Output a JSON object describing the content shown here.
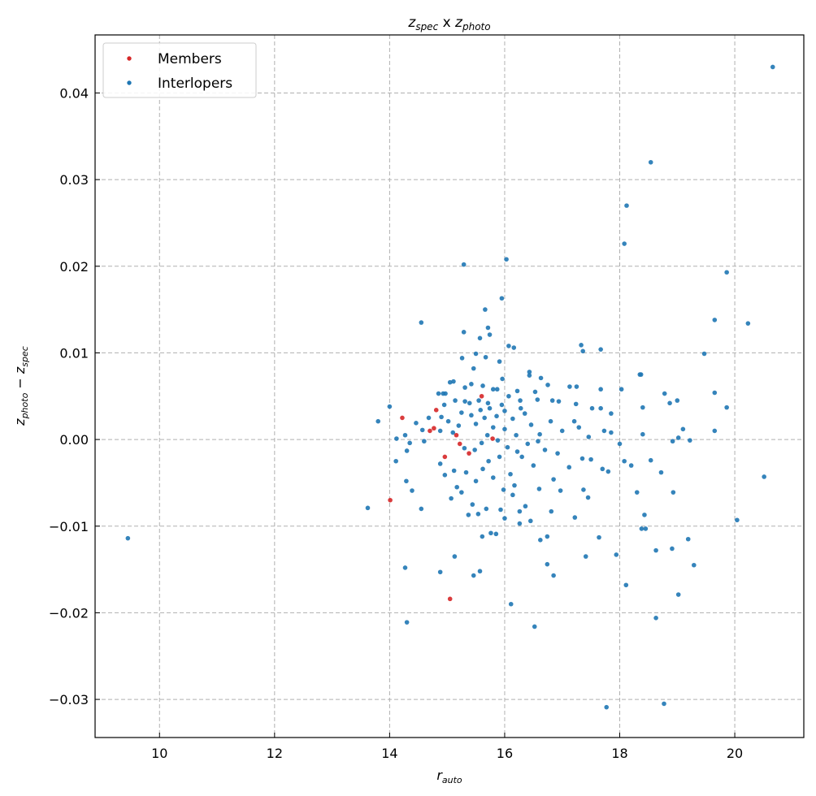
{
  "chart_data": {
    "type": "scatter",
    "title": "z_spec x z_photo",
    "title_parts": {
      "a": "z",
      "a_sub": "spec",
      "mid": " x ",
      "b": "z",
      "b_sub": "photo"
    },
    "xlabel": {
      "main": "r",
      "sub": "auto"
    },
    "ylabel": {
      "a": "z",
      "a_sub": "photo",
      "mid": " − ",
      "b": "z",
      "b_sub": "spec"
    },
    "xlim": [
      8.88,
      21.2
    ],
    "ylim": [
      -0.0344,
      0.0467
    ],
    "xticks": [
      10,
      12,
      14,
      16,
      18,
      20
    ],
    "xtick_labels": [
      "10",
      "12",
      "14",
      "16",
      "18",
      "20"
    ],
    "yticks": [
      -0.03,
      -0.02,
      -0.01,
      0,
      0.01,
      0.02,
      0.03,
      0.04
    ],
    "ytick_labels": [
      "−0.03",
      "−0.02",
      "−0.01",
      "0.00",
      "0.01",
      "0.02",
      "0.03",
      "0.04"
    ],
    "grid": true,
    "legend_position": "top-left",
    "series": [
      {
        "name": "Members",
        "color": "#d62728",
        "points": [
          [
            15.6,
            0.005
          ],
          [
            14.81,
            0.0034
          ],
          [
            14.22,
            0.0025
          ],
          [
            14.7,
            0.001
          ],
          [
            14.77,
            0.0013
          ],
          [
            15.16,
            0.0005
          ],
          [
            15.22,
            -0.0005
          ],
          [
            15.79,
            0.0001
          ],
          [
            14.96,
            -0.002
          ],
          [
            15.38,
            -0.0016
          ],
          [
            14.01,
            -0.007
          ],
          [
            15.05,
            -0.0184
          ]
        ]
      },
      {
        "name": "Interlopers",
        "color": "#1f77b4",
        "points": [
          [
            20.66,
            0.043
          ],
          [
            18.54,
            0.032
          ],
          [
            18.12,
            0.027
          ],
          [
            18.08,
            0.0226
          ],
          [
            16.03,
            0.0208
          ],
          [
            15.29,
            0.0202
          ],
          [
            19.86,
            0.0193
          ],
          [
            15.95,
            0.0163
          ],
          [
            14.55,
            0.0135
          ],
          [
            19.65,
            0.0138
          ],
          [
            20.23,
            0.0134
          ],
          [
            19.47,
            0.0099
          ],
          [
            17.33,
            0.0109
          ],
          [
            17.36,
            0.0102
          ],
          [
            17.67,
            0.0104
          ],
          [
            13.62,
            -0.0079
          ],
          [
            9.45,
            -0.0114
          ],
          [
            20.51,
            -0.0043
          ],
          [
            20.04,
            -0.0093
          ],
          [
            14.27,
            -0.0148
          ],
          [
            14.3,
            -0.0211
          ],
          [
            16.11,
            -0.019
          ],
          [
            16.52,
            -0.0216
          ],
          [
            17.77,
            -0.0309
          ],
          [
            18.77,
            -0.0305
          ],
          [
            18.63,
            -0.0206
          ],
          [
            19.02,
            -0.0179
          ],
          [
            19.29,
            -0.0145
          ],
          [
            19.19,
            -0.0115
          ],
          [
            18.91,
            -0.0126
          ],
          [
            18.63,
            -0.0128
          ],
          [
            18.11,
            -0.0168
          ],
          [
            17.94,
            -0.0133
          ],
          [
            17.64,
            -0.0113
          ],
          [
            16.85,
            -0.0157
          ],
          [
            16.74,
            -0.0144
          ],
          [
            17.41,
            -0.0135
          ],
          [
            15.13,
            -0.0135
          ],
          [
            14.88,
            -0.0153
          ],
          [
            15.46,
            -0.0157
          ],
          [
            15.57,
            -0.0152
          ],
          [
            15.66,
            0.015
          ],
          [
            15.71,
            0.0129
          ],
          [
            15.74,
            0.0121
          ],
          [
            15.57,
            0.0117
          ],
          [
            15.29,
            0.0124
          ],
          [
            15.91,
            0.009
          ],
          [
            16.07,
            0.0108
          ],
          [
            16.16,
            0.0106
          ],
          [
            15.26,
            0.0094
          ],
          [
            15.5,
            0.0099
          ],
          [
            15.67,
            0.0095
          ],
          [
            15.46,
            0.0082
          ],
          [
            15.96,
            0.007
          ],
          [
            16.43,
            0.0078
          ],
          [
            16.43,
            0.0074
          ],
          [
            16.63,
            0.0071
          ],
          [
            16.75,
            0.0063
          ],
          [
            17.13,
            0.0061
          ],
          [
            17.25,
            0.0061
          ],
          [
            17.67,
            0.0058
          ],
          [
            18.03,
            0.0058
          ],
          [
            16.53,
            0.0055
          ],
          [
            16.22,
            0.0056
          ],
          [
            15.87,
            0.0058
          ],
          [
            15.8,
            0.0058
          ],
          [
            15.62,
            0.0062
          ],
          [
            15.42,
            0.0064
          ],
          [
            15.31,
            0.006
          ],
          [
            15.05,
            0.0066
          ],
          [
            15.11,
            0.0067
          ],
          [
            14.97,
            0.0053
          ],
          [
            14.85,
            0.0053
          ],
          [
            14.93,
            0.0053
          ],
          [
            15.14,
            0.0045
          ],
          [
            15.31,
            0.0044
          ],
          [
            15.39,
            0.0042
          ],
          [
            15.55,
            0.0045
          ],
          [
            15.71,
            0.0042
          ],
          [
            16.07,
            0.005
          ],
          [
            16.27,
            0.0045
          ],
          [
            16.57,
            0.0046
          ],
          [
            16.83,
            0.0045
          ],
          [
            16.94,
            0.0044
          ],
          [
            17.24,
            0.0041
          ],
          [
            17.52,
            0.0036
          ],
          [
            17.67,
            0.0036
          ],
          [
            17.85,
            0.003
          ],
          [
            18.37,
            0.0075
          ],
          [
            18.35,
            0.0075
          ],
          [
            18.78,
            0.0053
          ],
          [
            18.87,
            0.0042
          ],
          [
            19.0,
            0.0045
          ],
          [
            19.65,
            0.0054
          ],
          [
            19.86,
            0.0037
          ],
          [
            18.4,
            0.0037
          ],
          [
            13.8,
            0.0021
          ],
          [
            14.0,
            0.0038
          ],
          [
            14.12,
            0.0001
          ],
          [
            14.27,
            0.0005
          ],
          [
            14.35,
            -0.0004
          ],
          [
            14.46,
            0.0019
          ],
          [
            14.57,
            0.0011
          ],
          [
            14.68,
            0.0025
          ],
          [
            14.9,
            0.0026
          ],
          [
            15.02,
            0.0021
          ],
          [
            15.25,
            0.0031
          ],
          [
            15.42,
            0.0028
          ],
          [
            15.58,
            0.0034
          ],
          [
            15.74,
            0.0036
          ],
          [
            15.86,
            0.0027
          ],
          [
            16.0,
            0.0033
          ],
          [
            16.14,
            0.0024
          ],
          [
            16.28,
            0.0036
          ],
          [
            16.46,
            0.0017
          ],
          [
            16.61,
            0.0006
          ],
          [
            16.8,
            0.0021
          ],
          [
            17.0,
            0.001
          ],
          [
            17.21,
            0.0021
          ],
          [
            17.29,
            0.0014
          ],
          [
            17.46,
            0.0003
          ],
          [
            17.73,
            0.001
          ],
          [
            17.85,
            0.0008
          ],
          [
            18.0,
            -0.0005
          ],
          [
            18.08,
            -0.0025
          ],
          [
            18.2,
            -0.003
          ],
          [
            18.4,
            0.0006
          ],
          [
            18.54,
            -0.0024
          ],
          [
            18.92,
            -0.0002
          ],
          [
            19.02,
            0.0002
          ],
          [
            19.1,
            0.0012
          ],
          [
            19.22,
            -0.0001
          ],
          [
            19.65,
            0.001
          ],
          [
            14.88,
            0.001
          ],
          [
            15.1,
            0.0008
          ],
          [
            15.3,
            -0.001
          ],
          [
            15.48,
            -0.0012
          ],
          [
            15.6,
            -0.0004
          ],
          [
            15.7,
            0.0005
          ],
          [
            15.88,
            -0.0001
          ],
          [
            16.05,
            -0.0009
          ],
          [
            16.22,
            -0.0014
          ],
          [
            16.4,
            -0.0005
          ],
          [
            16.58,
            -0.0002
          ],
          [
            16.7,
            -0.0012
          ],
          [
            16.92,
            -0.0016
          ],
          [
            17.12,
            -0.0032
          ],
          [
            17.35,
            -0.0022
          ],
          [
            17.5,
            -0.0023
          ],
          [
            17.7,
            -0.0034
          ],
          [
            17.8,
            -0.0037
          ],
          [
            18.3,
            -0.0061
          ],
          [
            18.43,
            -0.0087
          ],
          [
            18.38,
            -0.0103
          ],
          [
            18.45,
            -0.0103
          ],
          [
            18.72,
            -0.0038
          ],
          [
            18.93,
            -0.0061
          ],
          [
            17.45,
            -0.0067
          ],
          [
            17.37,
            -0.0058
          ],
          [
            17.22,
            -0.009
          ],
          [
            16.97,
            -0.0059
          ],
          [
            16.81,
            -0.0083
          ],
          [
            16.85,
            -0.0046
          ],
          [
            16.6,
            -0.0057
          ],
          [
            16.45,
            -0.0094
          ],
          [
            16.36,
            -0.0077
          ],
          [
            16.26,
            -0.0083
          ],
          [
            16.26,
            -0.0097
          ],
          [
            16.17,
            -0.0053
          ],
          [
            16.0,
            -0.0091
          ],
          [
            15.93,
            -0.0081
          ],
          [
            15.85,
            -0.0109
          ],
          [
            15.76,
            -0.0108
          ],
          [
            15.68,
            -0.008
          ],
          [
            15.61,
            -0.0112
          ],
          [
            15.54,
            -0.0086
          ],
          [
            15.44,
            -0.0075
          ],
          [
            15.37,
            -0.0087
          ],
          [
            15.25,
            -0.0061
          ],
          [
            15.17,
            -0.0055
          ],
          [
            15.07,
            -0.0068
          ],
          [
            14.96,
            -0.0041
          ],
          [
            14.88,
            -0.0028
          ],
          [
            15.12,
            -0.0036
          ],
          [
            15.33,
            -0.0038
          ],
          [
            15.5,
            -0.0048
          ],
          [
            15.62,
            -0.0034
          ],
          [
            15.8,
            -0.0044
          ],
          [
            15.98,
            -0.0058
          ],
          [
            16.1,
            -0.004
          ],
          [
            16.3,
            -0.002
          ],
          [
            16.5,
            -0.003
          ],
          [
            15.91,
            -0.002
          ],
          [
            15.72,
            -0.0025
          ],
          [
            16.14,
            -0.0064
          ],
          [
            16.62,
            -0.0116
          ],
          [
            16.74,
            -0.0112
          ],
          [
            14.55,
            -0.008
          ],
          [
            14.39,
            -0.0059
          ],
          [
            14.29,
            -0.0048
          ],
          [
            14.11,
            -0.0025
          ],
          [
            14.3,
            -0.0013
          ],
          [
            15.2,
            0.0016
          ],
          [
            15.5,
            0.0018
          ],
          [
            15.8,
            0.0014
          ],
          [
            16.0,
            0.0012
          ],
          [
            16.2,
            0.0005
          ],
          [
            14.6,
            -0.0002
          ],
          [
            14.95,
            0.004
          ],
          [
            15.65,
            0.0025
          ],
          [
            15.95,
            0.004
          ],
          [
            16.35,
            0.003
          ]
        ]
      }
    ]
  }
}
